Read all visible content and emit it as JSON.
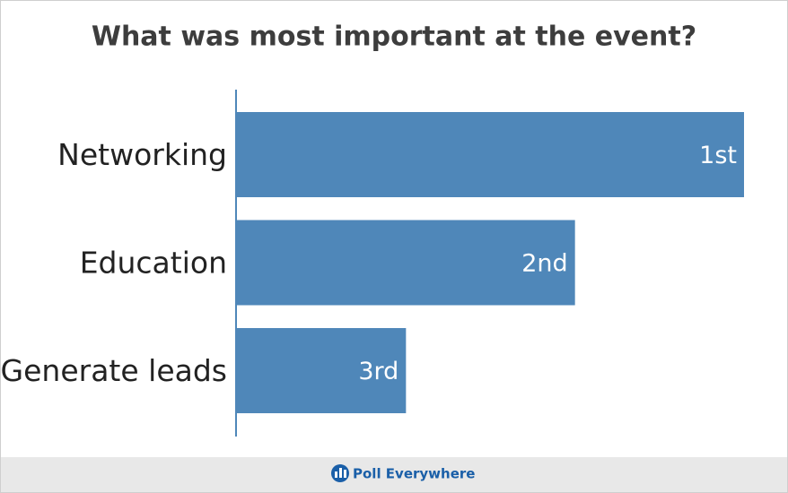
{
  "chart_data": {
    "type": "hbar",
    "title": "What was most important at the event?",
    "categories": [
      "Networking",
      "Education",
      "Generate leads"
    ],
    "values": [
      3,
      2,
      1
    ],
    "rank_labels": [
      "1st",
      "2nd",
      "3rd"
    ],
    "color": "#4f87b9",
    "xlim": [
      0,
      3
    ]
  },
  "footer": {
    "brand": "Poll Everywhere"
  }
}
